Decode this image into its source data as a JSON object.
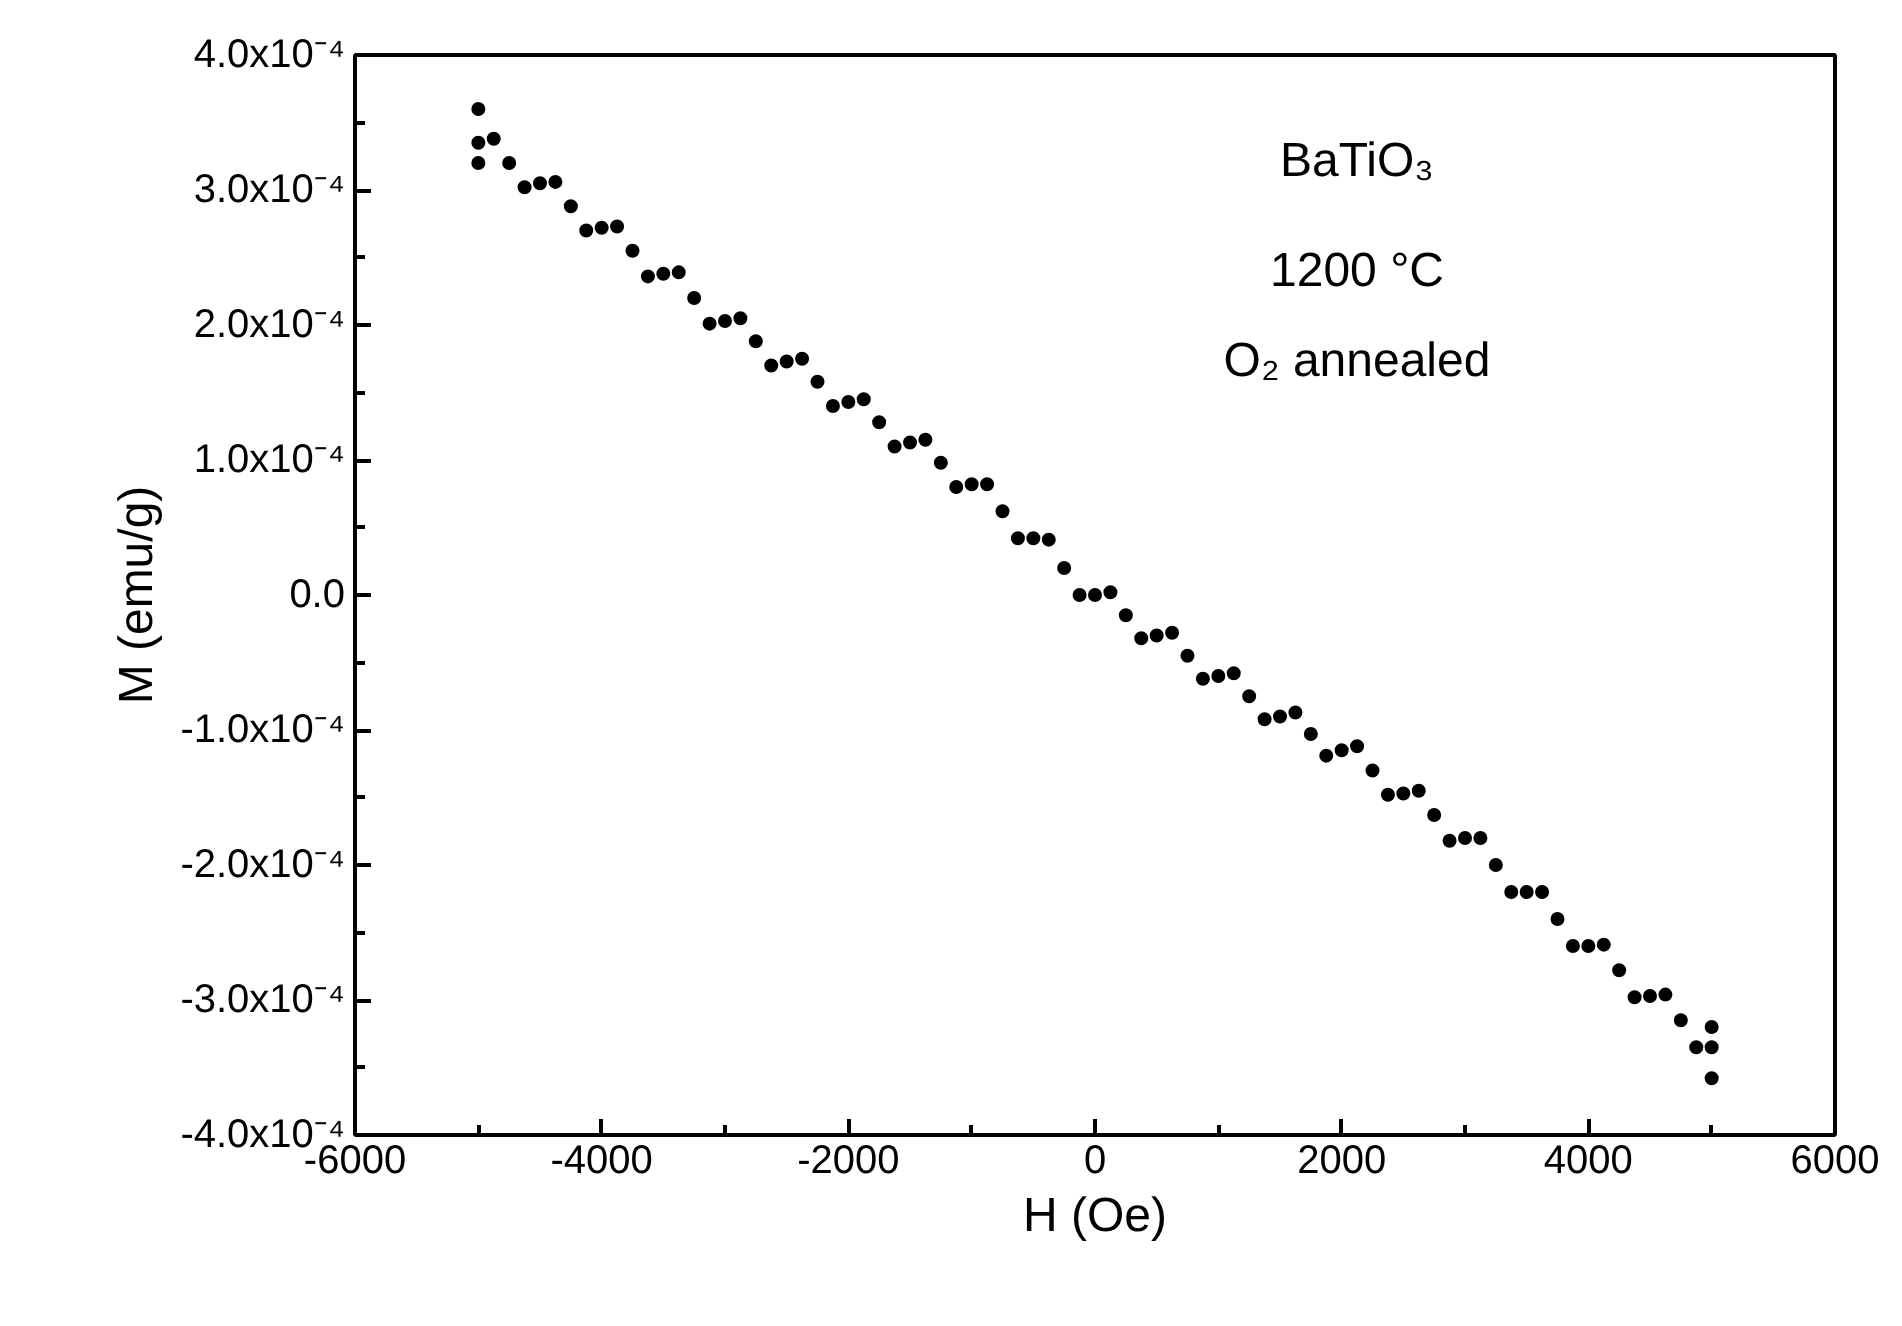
{
  "chart_data": {
    "type": "scatter",
    "xlabel": "H (Oe)",
    "ylabel": "M (emu/g)",
    "annotations": [
      "BaTiO₃",
      "1200 °C",
      "O₂ annealed"
    ],
    "marker": "circle",
    "grid": false,
    "xlim": [
      -6000,
      6000
    ],
    "xticks": [
      -6000,
      {
        "value": -5000,
        "label": null
      },
      -4000,
      {
        "value": -3000,
        "label": null
      },
      -2000,
      {
        "value": -1000,
        "label": null
      },
      0,
      {
        "value": 1000,
        "label": null
      },
      2000,
      {
        "value": 3000,
        "label": null
      },
      4000,
      {
        "value": 5000,
        "label": null
      },
      6000
    ],
    "ylim": [
      -0.0004,
      0.0004
    ],
    "yticks": [
      {
        "value": -0.0004,
        "label": "-4.0x10⁻⁴"
      },
      {
        "value": -0.00035,
        "label": null
      },
      {
        "value": -0.0003,
        "label": "-3.0x10⁻⁴"
      },
      {
        "value": -0.00025,
        "label": null
      },
      {
        "value": -0.0002,
        "label": "-2.0x10⁻⁴"
      },
      {
        "value": -0.00015,
        "label": null
      },
      {
        "value": -0.0001,
        "label": "-1.0x10⁻⁴"
      },
      {
        "value": -5e-05,
        "label": null
      },
      {
        "value": 0,
        "label": "0.0"
      },
      {
        "value": 5e-05,
        "label": null
      },
      {
        "value": 0.0001,
        "label": "1.0x10⁻⁴"
      },
      {
        "value": 0.00015,
        "label": null
      },
      {
        "value": 0.0002,
        "label": "2.0x10⁻⁴"
      },
      {
        "value": 0.00025,
        "label": null
      },
      {
        "value": 0.0003,
        "label": "3.0x10⁻⁴"
      },
      {
        "value": 0.00035,
        "label": null
      },
      {
        "value": 0.0004,
        "label": "4.0x10⁻⁴"
      }
    ],
    "series": [
      {
        "color": "#000000",
        "x": [
          -5000,
          -5000,
          -5000,
          -4875,
          -4750,
          -4625,
          -4500,
          -4375,
          -4250,
          -4125,
          -4000,
          -3875,
          -3750,
          -3625,
          -3500,
          -3375,
          -3250,
          -3125,
          -3000,
          -2875,
          -2750,
          -2625,
          -2500,
          -2375,
          -2250,
          -2125,
          -2000,
          -1875,
          -1750,
          -1625,
          -1500,
          -1375,
          -1250,
          -1125,
          -1000,
          -875,
          -750,
          -625,
          -500,
          -375,
          -250,
          -125,
          0,
          125,
          250,
          375,
          500,
          625,
          750,
          875,
          1000,
          1125,
          1250,
          1375,
          1500,
          1625,
          1750,
          1875,
          2000,
          2125,
          2250,
          2375,
          2500,
          2625,
          2750,
          2875,
          3000,
          3125,
          3250,
          3375,
          3500,
          3625,
          3750,
          3875,
          4000,
          4125,
          4250,
          4375,
          4500,
          4625,
          4750,
          4875,
          5000,
          5000,
          5000
        ],
        "values": [
          0.00036,
          0.000335,
          0.00032,
          0.000338,
          0.00032,
          0.000302,
          0.000305,
          0.000306,
          0.000288,
          0.00027,
          0.000272,
          0.000273,
          0.000255,
          0.000236,
          0.000238,
          0.000239,
          0.00022,
          0.000201,
          0.000203,
          0.000205,
          0.000188,
          0.00017,
          0.000173,
          0.000175,
          0.000158,
          0.00014,
          0.000143,
          0.000145,
          0.000128,
          0.00011,
          0.000113,
          0.000115,
          9.8e-05,
          8e-05,
          8.2e-05,
          8.2e-05,
          6.2e-05,
          4.2e-05,
          4.2e-05,
          4.1e-05,
          2e-05,
          0.0,
          0.0,
          2e-06,
          -1.5e-05,
          -3.2e-05,
          -3e-05,
          -2.8e-05,
          -4.5e-05,
          -6.2e-05,
          -6e-05,
          -5.8e-05,
          -7.5e-05,
          -9.2e-05,
          -9e-05,
          -8.7e-05,
          -0.000103,
          -0.000119,
          -0.000115,
          -0.000112,
          -0.00013,
          -0.000148,
          -0.000147,
          -0.000145,
          -0.000163,
          -0.000182,
          -0.00018,
          -0.00018,
          -0.0002,
          -0.00022,
          -0.00022,
          -0.00022,
          -0.00024,
          -0.00026,
          -0.00026,
          -0.000259,
          -0.000278,
          -0.000298,
          -0.000297,
          -0.000296,
          -0.000315,
          -0.000335,
          -0.000335,
          -0.000358,
          -0.00032
        ]
      }
    ]
  }
}
